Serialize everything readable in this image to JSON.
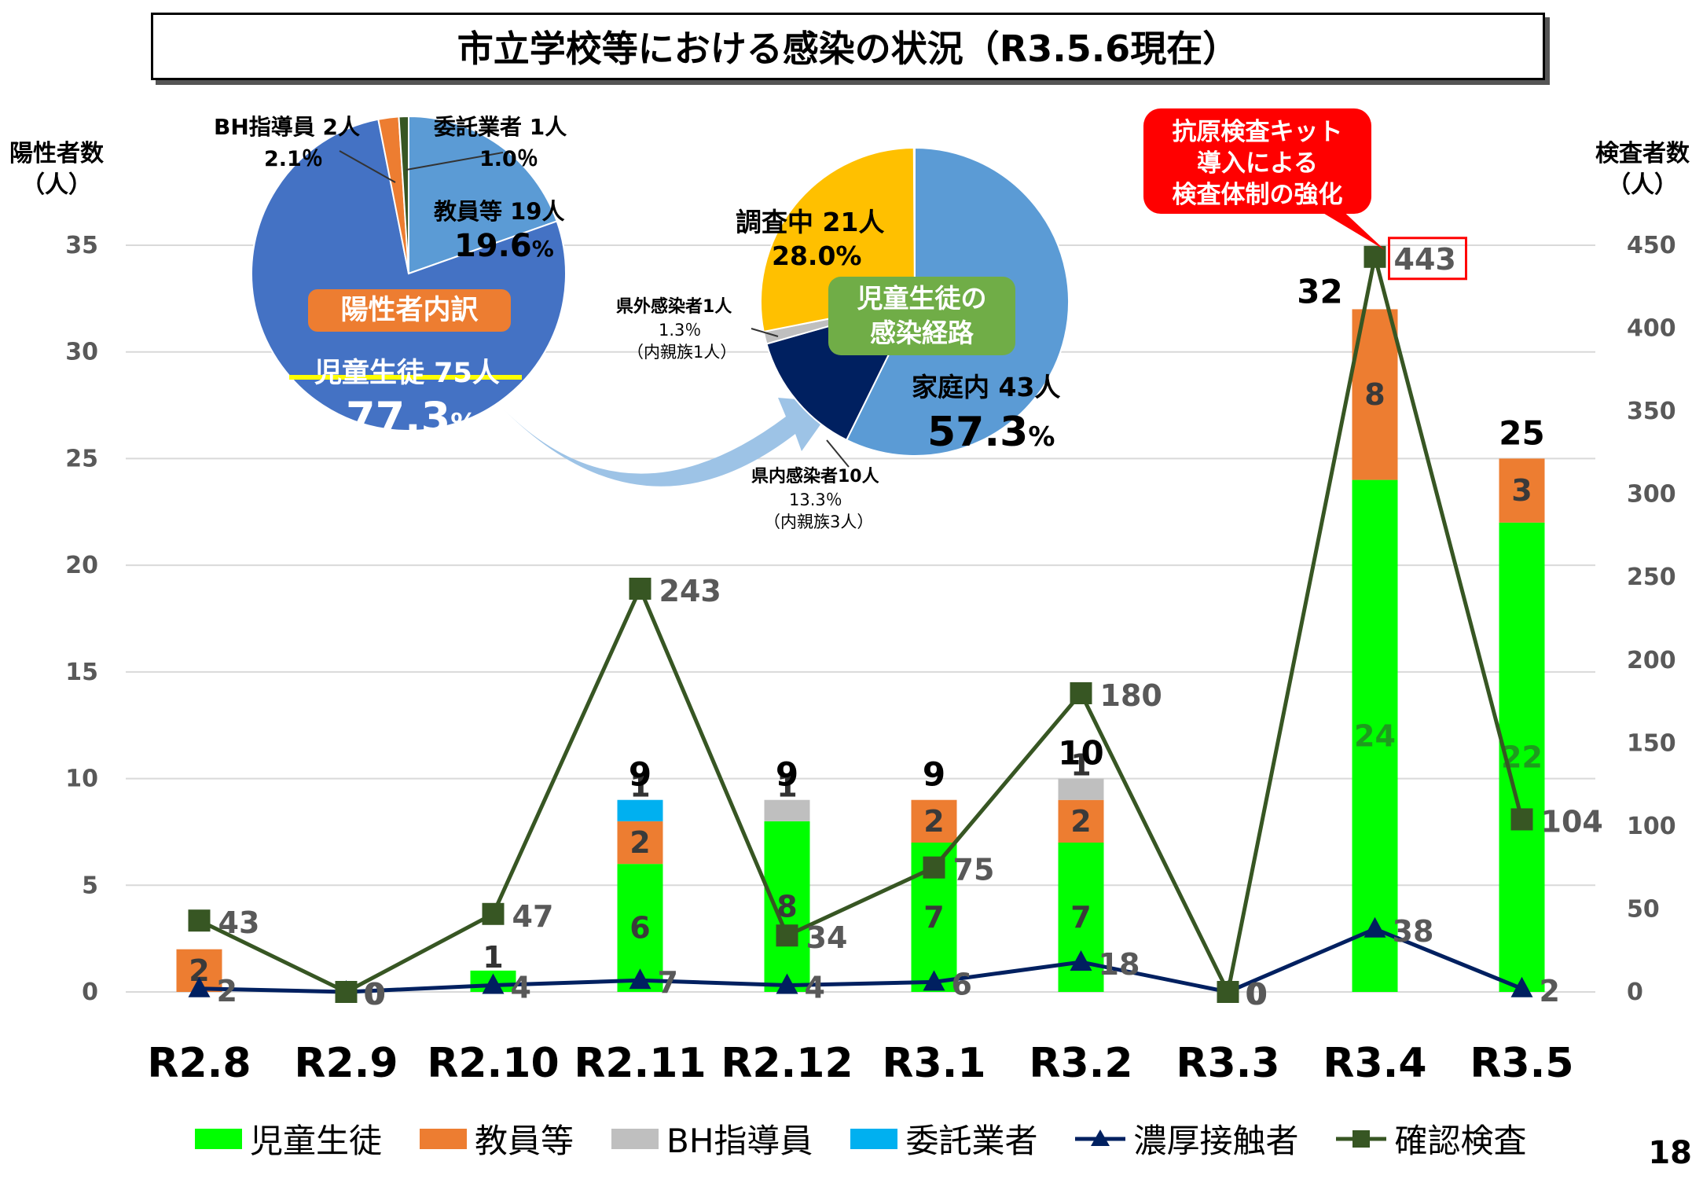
{
  "title": "市立学校等における感染の状況（R3.5.6現在）",
  "page_number": "18",
  "left_axis_title": "陽性者数\n（人）",
  "right_axis_title": "検査者数\n（人）",
  "callout": [
    "抗原検査キット",
    "導入による",
    "検査体制の強化"
  ],
  "colors": {
    "students": "#00ff00",
    "teachers": "#ed7d31",
    "bh": "#bfbfbf",
    "contractor": "#00b0f0",
    "contacts": "#002060",
    "tests": "#375623"
  },
  "pie1": {
    "badge": "陽性者内訳",
    "students_label": "児童生徒 75人",
    "students_pct": "77.3",
    "teachers_label": "教員等 19人",
    "teachers_pct": "19.6",
    "bh_label": "BH指導員 2人",
    "bh_pct": "2.1％",
    "contractor_label": "委託業者 1人",
    "contractor_pct": "1.0％",
    "pct_sign": "%"
  },
  "pie2": {
    "badge": "児童生徒の\n感染経路",
    "home_label": "家庭内 43人",
    "home_pct": "57.3",
    "investigating_label": "調査中 21人",
    "investigating_pct": "28.0%",
    "outside_label": "県外感染者1人",
    "outside_pct": "1.3％",
    "outside_note": "（内親族1人）",
    "inside_label": "県内感染者10人",
    "inside_pct": "13.3％",
    "inside_note": "（内親族3人）",
    "pct_sign": "%"
  },
  "legend": [
    "児童生徒",
    "教員等",
    "BH指導員",
    "委託業者",
    "濃厚接触者",
    "確認検査"
  ],
  "chart_data": {
    "type": "bar",
    "categories": [
      "R2.8",
      "R2.9",
      "R2.10",
      "R2.11",
      "R2.12",
      "R3.1",
      "R3.2",
      "R3.3",
      "R3.4",
      "R3.5"
    ],
    "series": [
      {
        "name": "児童生徒",
        "values": [
          0,
          0,
          1,
          6,
          8,
          7,
          7,
          0,
          24,
          22
        ]
      },
      {
        "name": "教員等",
        "values": [
          2,
          0,
          0,
          2,
          0,
          2,
          2,
          0,
          8,
          3
        ]
      },
      {
        "name": "BH指導員",
        "values": [
          0,
          0,
          0,
          0,
          1,
          0,
          1,
          0,
          0,
          0
        ]
      },
      {
        "name": "委託業者",
        "values": [
          0,
          0,
          0,
          1,
          0,
          0,
          0,
          0,
          0,
          0
        ]
      }
    ],
    "bar_totals": [
      "",
      "",
      "",
      "9",
      "9",
      "9",
      "10",
      "",
      "32",
      "25"
    ],
    "line_series": [
      {
        "name": "濃厚接触者",
        "axis": "right",
        "values": [
          2,
          0,
          4,
          7,
          4,
          6,
          18,
          0,
          38,
          2
        ]
      },
      {
        "name": "確認検査",
        "axis": "right",
        "values": [
          43,
          0,
          47,
          243,
          34,
          75,
          180,
          0,
          443,
          104
        ]
      }
    ],
    "y_left": {
      "min": 0,
      "max": 35,
      "ticks": [
        0,
        5,
        10,
        15,
        20,
        25,
        30,
        35
      ]
    },
    "y_right": {
      "min": 0,
      "max": 450,
      "ticks": [
        0,
        50,
        100,
        150,
        200,
        250,
        300,
        350,
        400,
        450
      ]
    },
    "highlighted_label": "443"
  }
}
